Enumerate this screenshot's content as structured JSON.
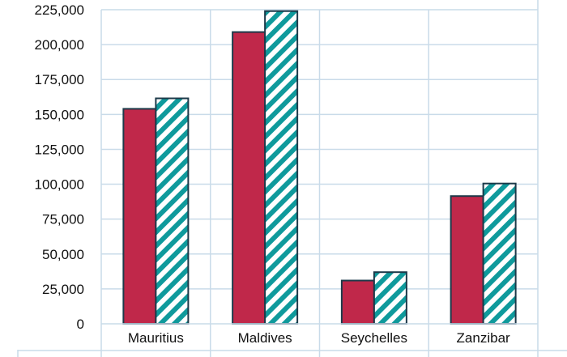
{
  "chart_data": {
    "type": "bar",
    "categories": [
      "Mauritius",
      "Maldives",
      "Seychelles",
      "Zanzibar"
    ],
    "series": [
      {
        "values": [
          154000,
          209000,
          31000,
          91500
        ],
        "pattern": "solid",
        "color": "#c0284a"
      },
      {
        "values": [
          161500,
          224000,
          37000,
          100500
        ],
        "pattern": "diagonal-stripes",
        "color": "#0f9a9c"
      }
    ],
    "yticks": [
      0,
      25000,
      50000,
      75000,
      100000,
      125000,
      150000,
      175000,
      200000,
      225000
    ],
    "ytick_labels": [
      "0",
      "25,000",
      "50,000",
      "75,000",
      "100,000",
      "125,000",
      "150,000",
      "175,000",
      "200,000",
      "225,000"
    ],
    "ylim": [
      0,
      225000
    ],
    "grid": true,
    "legend": "none",
    "colors": {
      "grid": "#c9dbe9",
      "bar_outline": "#1d3a4a"
    }
  }
}
